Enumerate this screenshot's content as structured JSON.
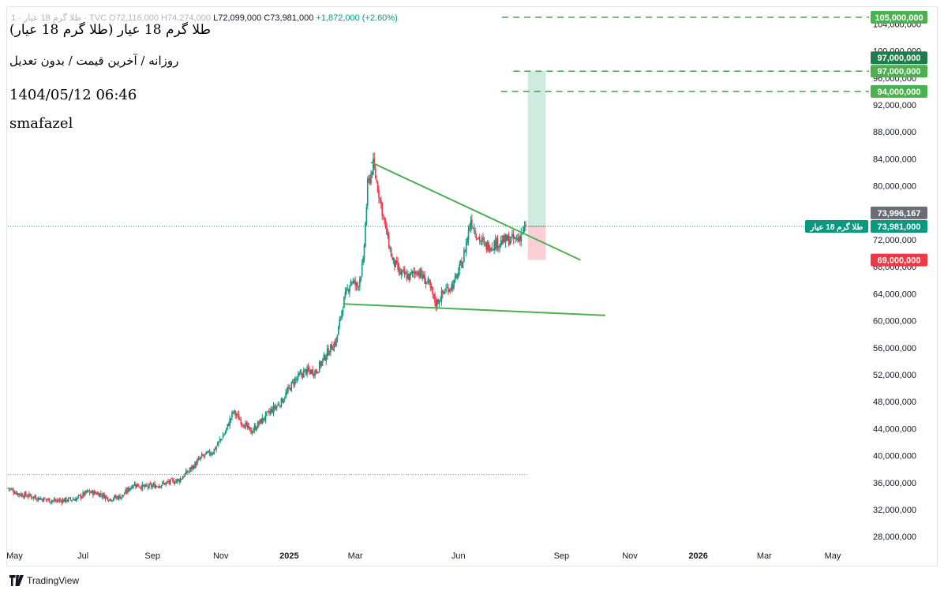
{
  "header": {
    "ohlc_prefix": "طلا گرم 18 عیار · 1 · TVC",
    "open": "O72,116,000",
    "high": "H74,274,000",
    "low": "L72,099,000",
    "close": "C73,981,000",
    "change": "+1,872,000 (+2.60%)",
    "line1": "طلا گرم 18 عیار (طلا گرم 18 عیار)",
    "line2": "روزانه / آخرین قیمت / بدون تعدیل",
    "line3": "1404/05/12 06:46",
    "line4": "smafazel"
  },
  "footer": {
    "brand": "TradingView"
  },
  "colors": {
    "up": "#089981",
    "down": "#f23645",
    "trendline": "#4caf50",
    "target_line": "#43a047",
    "target_label": "#4caf50",
    "profit_zone": "#cfeadf",
    "loss_zone": "#fad0d5"
  },
  "chart_data": {
    "type": "candlestick",
    "title": "طلا گرم 18 عیار",
    "x_tick_labels": [
      "May",
      "Jul",
      "Sep",
      "Nov",
      "2025",
      "Mar",
      "Jun",
      "Sep",
      "Nov",
      "2026",
      "Mar",
      "May"
    ],
    "y_ticks": [
      28000000,
      32000000,
      36000000,
      40000000,
      44000000,
      48000000,
      52000000,
      56000000,
      60000000,
      64000000,
      68000000,
      72000000,
      76000000,
      80000000,
      84000000,
      88000000,
      92000000,
      96000000,
      100000000,
      104000000
    ],
    "ylim": [
      26500000,
      106500000
    ],
    "x_range": [
      "2024-04-25",
      "2026-06-01"
    ],
    "grid": false,
    "last_price": 73981000,
    "last_price_label": "طلا گرم 18 عیار",
    "price_labels": [
      {
        "value": 105000000,
        "text": "105,000,000",
        "kind": "target"
      },
      {
        "value": 97000000,
        "text": "97,000,000",
        "kind": "target-dark"
      },
      {
        "value": 97000000,
        "text": "97,000,000",
        "kind": "target"
      },
      {
        "value": 94000000,
        "text": "94,000,000",
        "kind": "target"
      },
      {
        "value": 73996167,
        "text": "73,996,167",
        "kind": "grey"
      },
      {
        "value": 73981000,
        "text": "73,981,000",
        "kind": "last"
      },
      {
        "value": 69000000,
        "text": "69,000,000",
        "kind": "stop"
      }
    ],
    "horizontal_lines": [
      {
        "value": 105000000,
        "start": "2025-07-10"
      },
      {
        "value": 97000000,
        "start": "2025-07-20"
      },
      {
        "value": 94000000,
        "start": "2025-07-09"
      }
    ],
    "long_position": {
      "start": "2025-08-02",
      "end": "2025-08-18",
      "entry": 74000000,
      "target": 97000000,
      "stop": 69000000
    },
    "trendlines": [
      {
        "from": [
          "2025-03-15",
          83500000
        ],
        "to": [
          "2025-09-18",
          69000000
        ]
      },
      {
        "from": [
          "2025-02-18",
          62500000
        ],
        "to": [
          "2025-10-10",
          60800000
        ]
      }
    ],
    "reference_line": {
      "value": 37200000,
      "from": "2024-04-25",
      "to": "2025-08-01"
    },
    "price_path": [
      [
        "2024-04-25",
        35200000
      ],
      [
        "2024-05-05",
        34300000
      ],
      [
        "2024-05-15",
        34000000
      ],
      [
        "2024-05-25",
        33600000
      ],
      [
        "2024-06-05",
        33300000
      ],
      [
        "2024-06-15",
        33400000
      ],
      [
        "2024-06-25",
        33600000
      ],
      [
        "2024-07-05",
        34600000
      ],
      [
        "2024-07-15",
        34400000
      ],
      [
        "2024-07-25",
        33600000
      ],
      [
        "2024-08-05",
        34000000
      ],
      [
        "2024-08-15",
        35800000
      ],
      [
        "2024-08-25",
        35300000
      ],
      [
        "2024-09-05",
        35600000
      ],
      [
        "2024-09-15",
        36000000
      ],
      [
        "2024-09-25",
        36400000
      ],
      [
        "2024-10-05",
        38000000
      ],
      [
        "2024-10-15",
        39800000
      ],
      [
        "2024-10-25",
        40600000
      ],
      [
        "2024-11-05",
        43500000
      ],
      [
        "2024-11-12",
        46500000
      ],
      [
        "2024-11-20",
        45000000
      ],
      [
        "2024-11-28",
        43500000
      ],
      [
        "2024-12-05",
        44800000
      ],
      [
        "2024-12-15",
        46500000
      ],
      [
        "2024-12-25",
        48000000
      ],
      [
        "2025-01-05",
        51000000
      ],
      [
        "2025-01-15",
        52500000
      ],
      [
        "2025-01-25",
        52500000
      ],
      [
        "2025-02-05",
        55500000
      ],
      [
        "2025-02-12",
        57000000
      ],
      [
        "2025-02-18",
        62500000
      ],
      [
        "2025-02-25",
        66000000
      ],
      [
        "2025-03-03",
        65000000
      ],
      [
        "2025-03-08",
        68500000
      ],
      [
        "2025-03-12",
        80000000
      ],
      [
        "2025-03-17",
        83000000
      ],
      [
        "2025-03-22",
        79000000
      ],
      [
        "2025-03-27",
        74500000
      ],
      [
        "2025-04-03",
        69000000
      ],
      [
        "2025-04-10",
        67000000
      ],
      [
        "2025-04-18",
        66500000
      ],
      [
        "2025-04-25",
        67500000
      ],
      [
        "2025-05-05",
        65500000
      ],
      [
        "2025-05-12",
        62500000
      ],
      [
        "2025-05-20",
        64500000
      ],
      [
        "2025-05-28",
        65500000
      ],
      [
        "2025-06-05",
        69000000
      ],
      [
        "2025-06-12",
        75000000
      ],
      [
        "2025-06-18",
        72500000
      ],
      [
        "2025-06-25",
        71000000
      ],
      [
        "2025-07-05",
        71500000
      ],
      [
        "2025-07-15",
        72000000
      ],
      [
        "2025-07-24",
        72100000
      ],
      [
        "2025-07-31",
        73981000
      ]
    ]
  }
}
